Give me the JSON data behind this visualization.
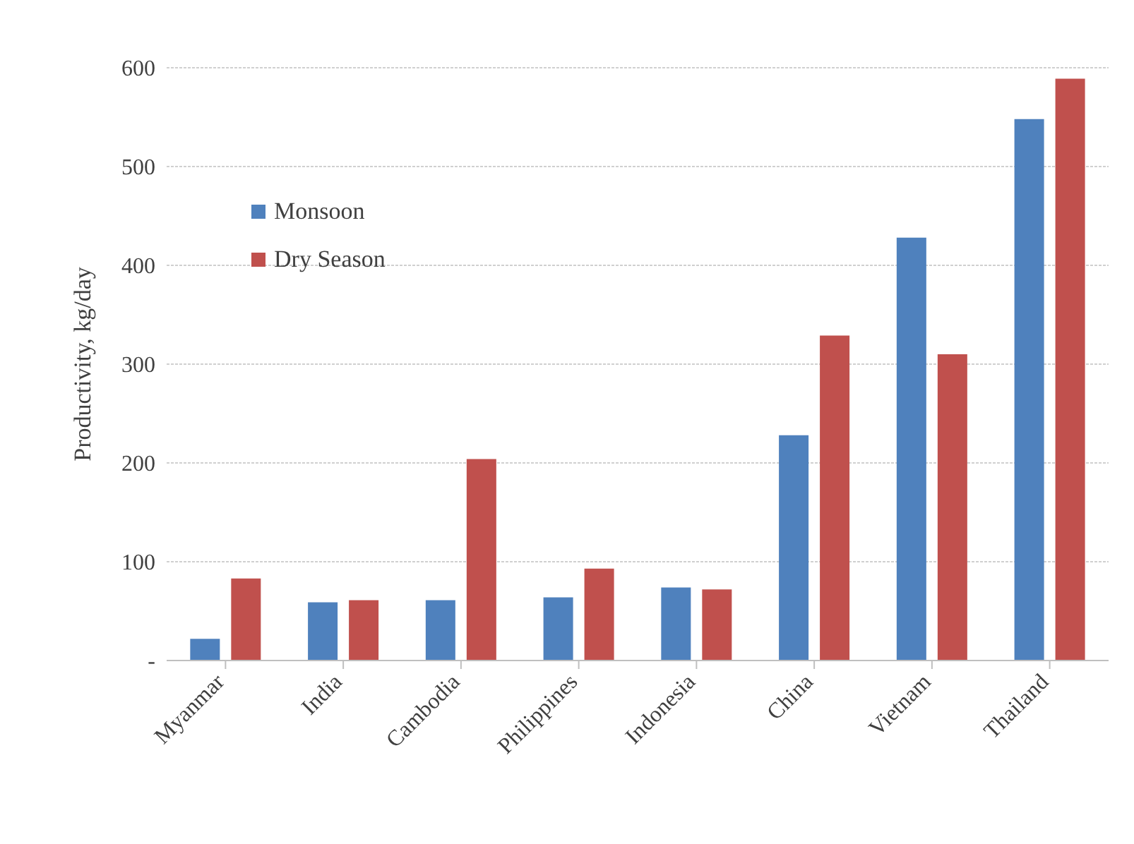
{
  "chart_data": {
    "type": "bar",
    "ylabel": "Productivity,  kg/day",
    "categories": [
      "Myanmar",
      "India",
      "Cambodia",
      "Philippines",
      "Indonesia",
      "China",
      "Vietnam",
      "Thailand"
    ],
    "series": [
      {
        "name": "Monsoon",
        "color": "#4f81bd",
        "values": [
          22,
          59,
          61,
          64,
          74,
          228,
          428,
          548
        ]
      },
      {
        "name": "Dry Season",
        "color": "#c0504d",
        "values": [
          83,
          61,
          204,
          93,
          72,
          329,
          310,
          589
        ]
      }
    ],
    "ylim": [
      0,
      600
    ],
    "yticks": [
      {
        "value": 0,
        "label": "-"
      },
      100,
      200,
      300,
      400,
      500,
      600
    ],
    "grid": "y",
    "legend": "top left"
  }
}
